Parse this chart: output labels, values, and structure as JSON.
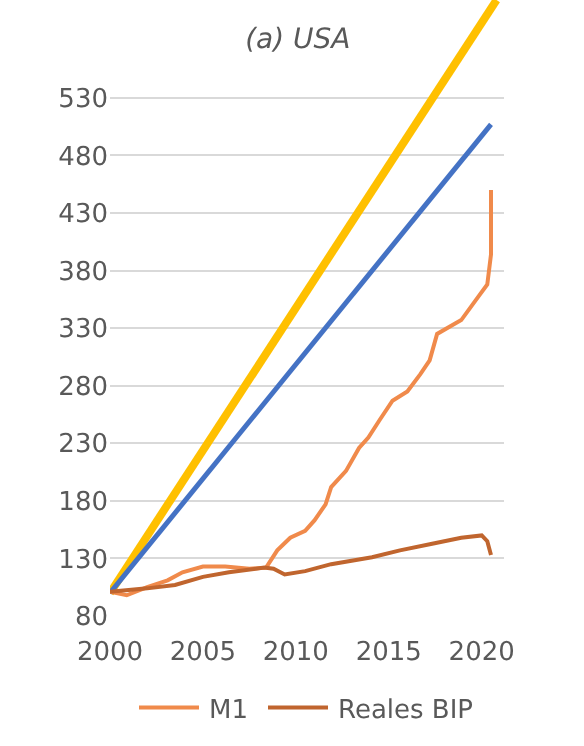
{
  "chart_data": {
    "type": "line",
    "title": "(a) USA",
    "xlim": [
      2000,
      2021.2
    ],
    "xticks": [
      2000,
      2005,
      2010,
      2015,
      2020
    ],
    "ylim": [
      80,
      615
    ],
    "yticks": [
      80,
      130,
      180,
      230,
      280,
      330,
      380,
      430,
      480,
      530
    ],
    "grid": "y",
    "legend": "bottom",
    "marker": "none",
    "line_style": "solid",
    "series": [
      {
        "color": "#ffc000",
        "x": [
          2000,
          2020.8
        ],
        "values": [
          100,
          615
        ]
      },
      {
        "color": "#4472c4",
        "x": [
          2000,
          2020.5
        ],
        "values": [
          100,
          507
        ]
      },
      {
        "name": "M1",
        "color": "#f08a4b",
        "x": [
          2000,
          2000.9,
          2002,
          2003.1,
          2003.9,
          2005,
          2006.2,
          2007.5,
          2008.4,
          2009,
          2009.7,
          2010.5,
          2011,
          2011.6,
          2011.9,
          2012.7,
          2013.4,
          2013.9,
          2014.5,
          2015.2,
          2016,
          2016.7,
          2017.2,
          2017.6,
          2018.9,
          2019.8,
          2020.3,
          2020.5,
          2020.5
        ],
        "values": [
          101,
          98,
          105,
          111,
          118,
          123,
          123,
          121,
          122,
          137,
          148,
          154,
          163,
          177,
          192,
          206,
          226,
          235,
          250,
          267,
          275,
          290,
          302,
          325,
          337,
          357,
          368,
          394,
          450
        ]
      },
      {
        "name": "Reales BIP",
        "color": "#c0652e",
        "x": [
          2000,
          2002,
          2003.5,
          2005,
          2006.4,
          2008.3,
          2008.8,
          2009.4,
          2010.5,
          2011.9,
          2014.1,
          2015.6,
          2017.4,
          2018.9,
          2020,
          2020.3,
          2020.5
        ],
        "values": [
          101,
          104,
          107,
          114,
          118,
          122,
          121,
          116,
          119,
          125,
          131,
          137,
          143,
          148,
          150,
          145,
          133
        ]
      }
    ]
  }
}
